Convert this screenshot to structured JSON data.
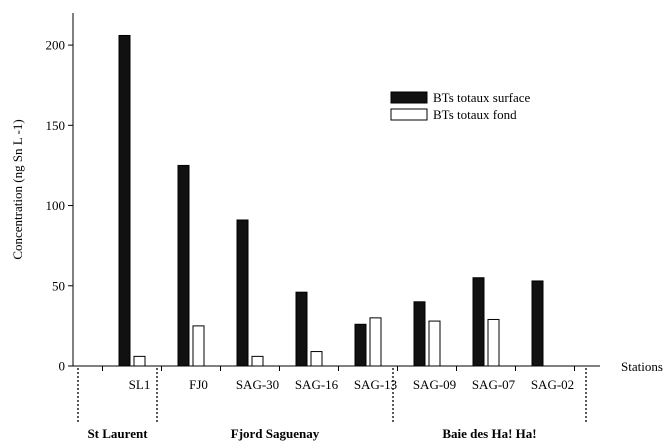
{
  "chart_data": {
    "type": "bar",
    "ylabel": "Concentration (ng Sn L  -1)",
    "xlabel": "Stations",
    "ylim": [
      0,
      220
    ],
    "yticks": [
      0,
      50,
      100,
      150,
      200
    ],
    "categories": [
      "SL1",
      "FJ0",
      "SAG-30",
      "SAG-16",
      "SAG-13",
      "SAG-09",
      "SAG-07",
      "SAG-02"
    ],
    "series": [
      {
        "name": "BTs totaux surface",
        "color": "#111111",
        "values": [
          206,
          125,
          91,
          46,
          26,
          40,
          55,
          53
        ]
      },
      {
        "name": "BTs totaux fond",
        "color": "#ffffff",
        "values": [
          6,
          25,
          6,
          9,
          30,
          28,
          29,
          null
        ]
      }
    ],
    "groups": [
      {
        "label": "St Laurent",
        "categories": [
          "SL1"
        ]
      },
      {
        "label": "Fjord Saguenay",
        "categories": [
          "FJ0",
          "SAG-30",
          "SAG-16",
          "SAG-13"
        ]
      },
      {
        "label": "Baie des Ha! Ha!",
        "categories": [
          "SAG-09",
          "SAG-07",
          "SAG-02"
        ]
      }
    ],
    "legend_position": "top-right",
    "grid": false
  }
}
